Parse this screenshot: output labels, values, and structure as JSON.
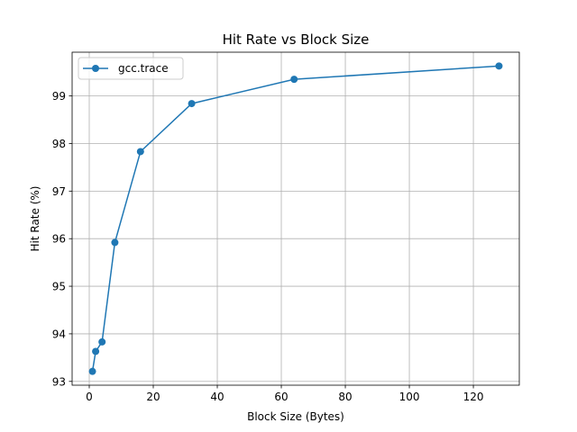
{
  "chart_data": {
    "type": "line",
    "title": "Hit Rate vs Block Size",
    "xlabel": "Block Size (Bytes)",
    "ylabel": "Hit Rate (%)",
    "xlim": [
      -5.35,
      134.35
    ],
    "ylim": [
      92.92,
      99.92
    ],
    "xticks": [
      0,
      20,
      40,
      60,
      80,
      100,
      120
    ],
    "yticks": [
      93,
      94,
      95,
      96,
      97,
      98,
      99
    ],
    "grid": true,
    "legend_position": "upper-left",
    "series": [
      {
        "name": "gcc.trace",
        "color": "#1f77b4",
        "marker": "circle",
        "x": [
          1,
          2,
          4,
          8,
          16,
          32,
          64,
          128
        ],
        "y": [
          93.21,
          93.63,
          93.83,
          95.92,
          97.83,
          98.84,
          99.35,
          99.63
        ]
      }
    ]
  }
}
